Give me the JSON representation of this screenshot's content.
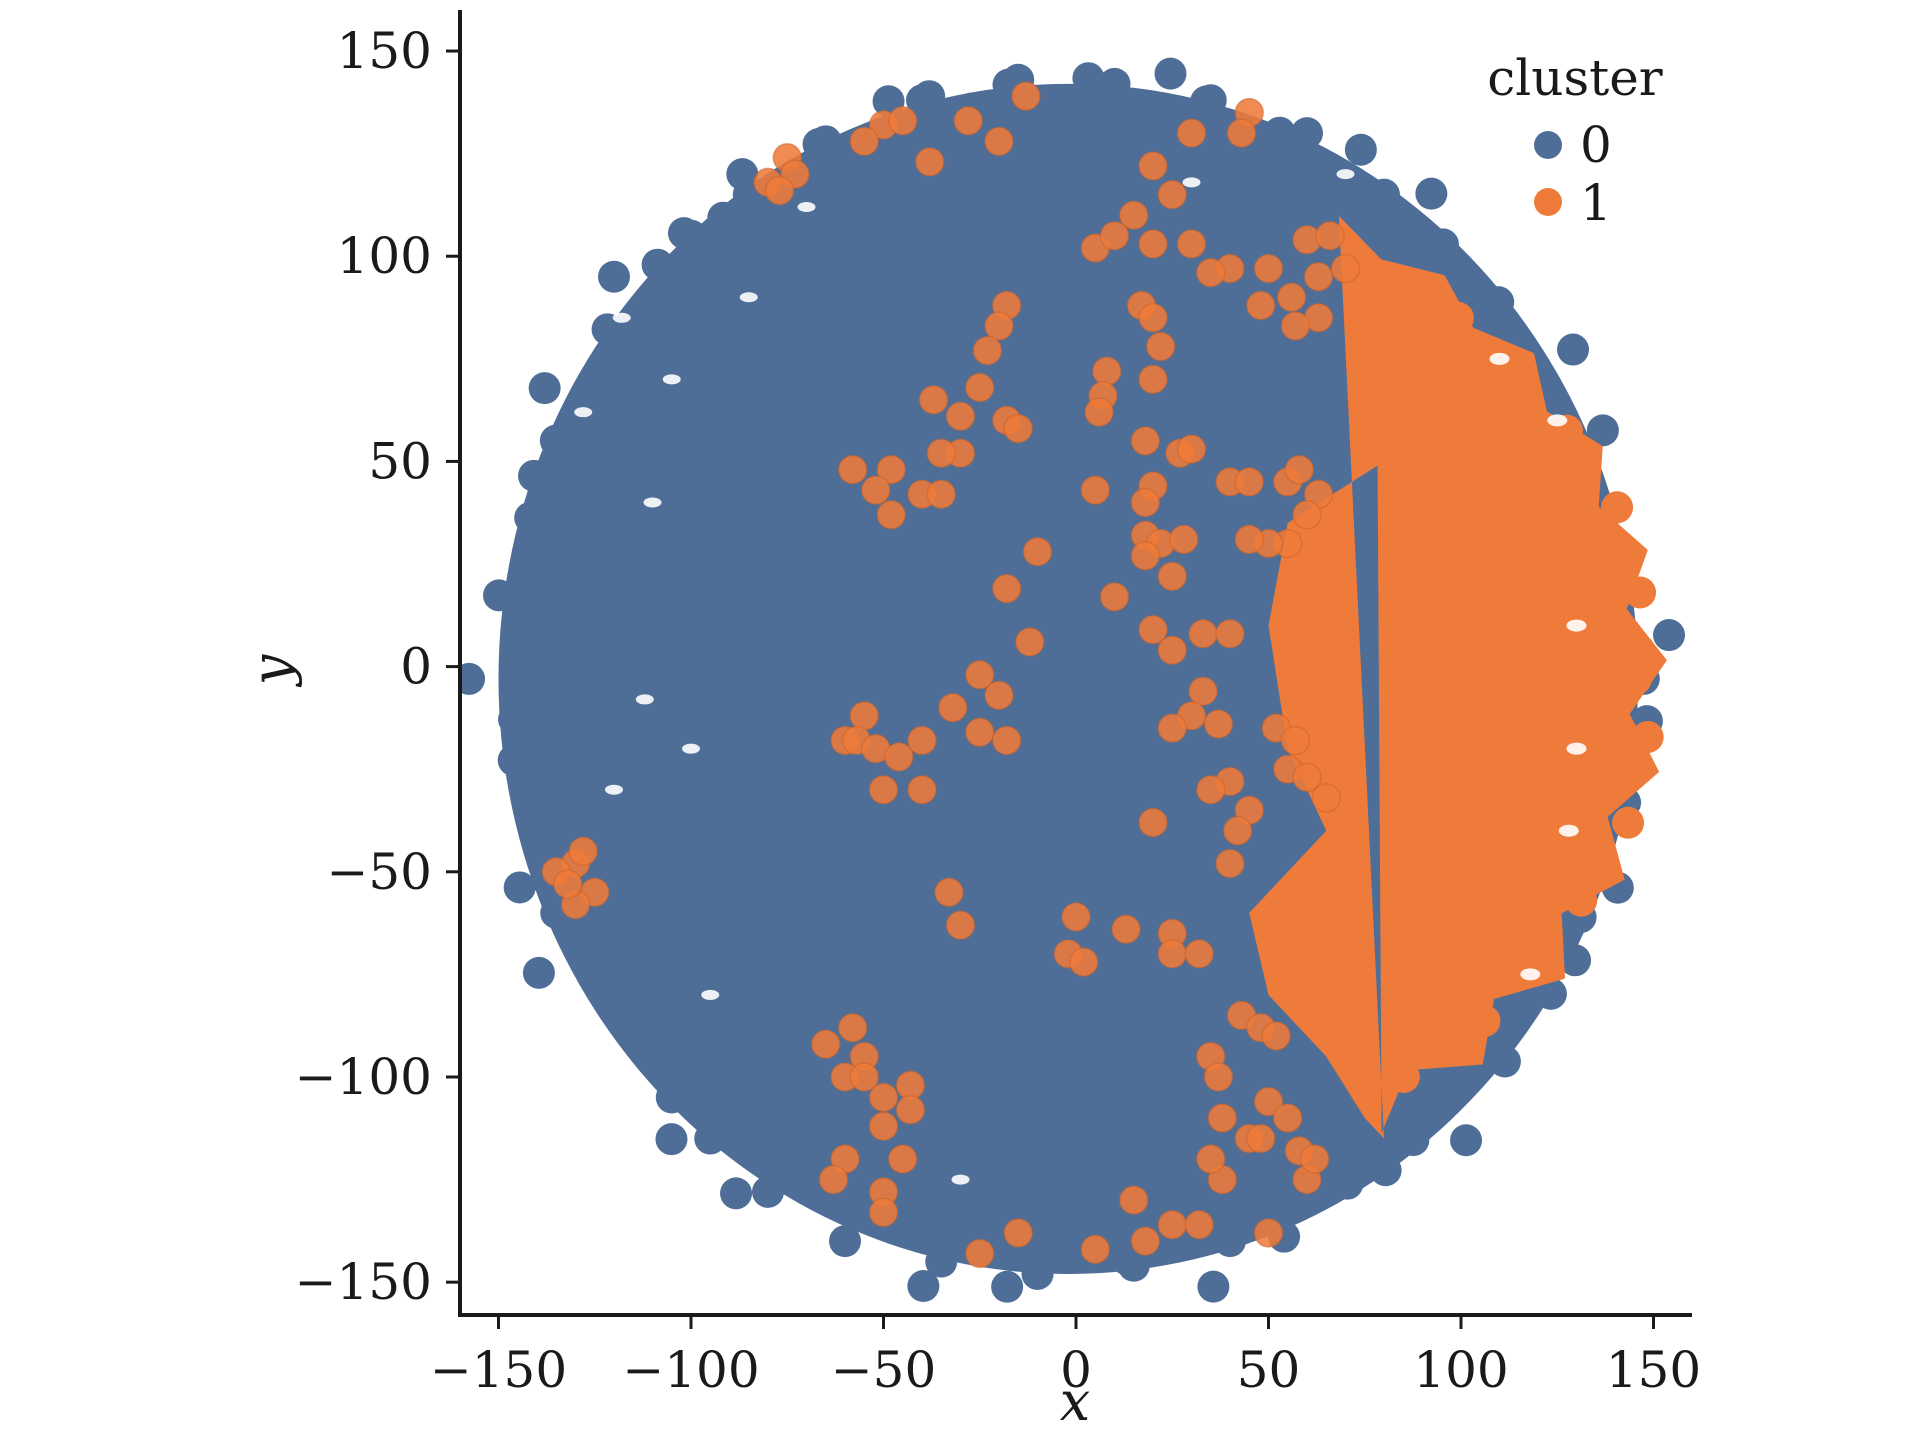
{
  "chart_data": {
    "type": "scatter",
    "title": "",
    "xlabel": "x",
    "ylabel": "y",
    "xlim": [
      -160,
      160
    ],
    "ylim": [
      -158,
      160
    ],
    "x_ticks": [
      -150,
      -100,
      -50,
      0,
      50,
      100,
      150
    ],
    "y_ticks": [
      -150,
      -100,
      -50,
      0,
      50,
      100,
      150
    ],
    "x_tick_labels": [
      "−150",
      "−100",
      "−50",
      "0",
      "50",
      "100",
      "150"
    ],
    "y_tick_labels": [
      "−150",
      "−100",
      "−50",
      "0",
      "50",
      "100",
      "150"
    ],
    "grid": false,
    "legend": {
      "title": "cluster",
      "placement": "top-right",
      "entries": [
        {
          "label": "0",
          "color": "#4e6e98"
        },
        {
          "label": "1",
          "color": "#ee7b3a"
        }
      ]
    },
    "series": [
      {
        "name": "0",
        "color": "#4e6e98",
        "cloud": {
          "center": [
            -2,
            -3
          ],
          "rx": 148,
          "ry": 145
        },
        "points": [
          [
            -120,
            95
          ],
          [
            -130,
            60
          ],
          [
            -140,
            30
          ],
          [
            -145,
            0
          ],
          [
            -140,
            -30
          ],
          [
            -135,
            -60
          ],
          [
            -120,
            -80
          ],
          [
            -105,
            -105
          ],
          [
            -95,
            -115
          ],
          [
            -80,
            -128
          ],
          [
            -60,
            -140
          ],
          [
            -35,
            -145
          ],
          [
            -10,
            -148
          ],
          [
            15,
            -146
          ],
          [
            40,
            -140
          ],
          [
            60,
            -128
          ],
          [
            80,
            115
          ],
          [
            60,
            130
          ],
          [
            35,
            138
          ],
          [
            10,
            142
          ],
          [
            -15,
            143
          ],
          [
            -40,
            138
          ],
          [
            -65,
            128
          ],
          [
            -85,
            115
          ],
          [
            -100,
            105
          ],
          [
            -110,
            80
          ]
        ]
      },
      {
        "name": "1",
        "color": "#ee7b3a",
        "region": {
          "center": [
            100,
            -5
          ],
          "rx": 55,
          "ry": 110,
          "left_boundary": [
            [
              78,
              100
            ],
            [
              85,
              70
            ],
            [
              80,
              50
            ],
            [
              55,
              35
            ],
            [
              50,
              10
            ],
            [
              55,
              -20
            ],
            [
              65,
              -40
            ],
            [
              45,
              -60
            ],
            [
              50,
              -80
            ],
            [
              65,
              -95
            ],
            [
              75,
              -110
            ],
            [
              80,
              -115
            ]
          ]
        },
        "points": [
          [
            -75,
            124
          ],
          [
            -73,
            120
          ],
          [
            -80,
            118
          ],
          [
            -77,
            116
          ],
          [
            -50,
            132
          ],
          [
            -55,
            128
          ],
          [
            -45,
            133
          ],
          [
            -38,
            123
          ],
          [
            -28,
            133
          ],
          [
            -13,
            139
          ],
          [
            -20,
            128
          ],
          [
            45,
            135
          ],
          [
            43,
            130
          ],
          [
            30,
            130
          ],
          [
            20,
            122
          ],
          [
            25,
            115
          ],
          [
            15,
            110
          ],
          [
            20,
            103
          ],
          [
            5,
            102
          ],
          [
            10,
            105
          ],
          [
            30,
            103
          ],
          [
            40,
            97
          ],
          [
            35,
            96
          ],
          [
            50,
            97
          ],
          [
            60,
            104
          ],
          [
            66,
            105
          ],
          [
            70,
            97
          ],
          [
            63,
            95
          ],
          [
            56,
            90
          ],
          [
            48,
            88
          ],
          [
            63,
            85
          ],
          [
            57,
            83
          ],
          [
            17,
            88
          ],
          [
            20,
            85
          ],
          [
            22,
            78
          ],
          [
            20,
            70
          ],
          [
            8,
            72
          ],
          [
            7,
            66
          ],
          [
            6,
            62
          ],
          [
            -18,
            88
          ],
          [
            -20,
            83
          ],
          [
            -23,
            77
          ],
          [
            -25,
            68
          ],
          [
            -37,
            65
          ],
          [
            -30,
            61
          ],
          [
            -18,
            60
          ],
          [
            -15,
            58
          ],
          [
            -30,
            52
          ],
          [
            -35,
            52
          ],
          [
            -40,
            42
          ],
          [
            -35,
            42
          ],
          [
            -48,
            48
          ],
          [
            -52,
            43
          ],
          [
            -58,
            48
          ],
          [
            -48,
            37
          ],
          [
            5,
            43
          ],
          [
            18,
            55
          ],
          [
            27,
            52
          ],
          [
            30,
            53
          ],
          [
            40,
            45
          ],
          [
            45,
            45
          ],
          [
            55,
            45
          ],
          [
            58,
            48
          ],
          [
            63,
            42
          ],
          [
            60,
            37
          ],
          [
            55,
            30
          ],
          [
            50,
            30
          ],
          [
            45,
            31
          ],
          [
            20,
            44
          ],
          [
            18,
            40
          ],
          [
            18,
            32
          ],
          [
            22,
            30
          ],
          [
            28,
            31
          ],
          [
            18,
            27
          ],
          [
            25,
            22
          ],
          [
            -18,
            19
          ],
          [
            10,
            17
          ],
          [
            20,
            9
          ],
          [
            25,
            4
          ],
          [
            33,
            8
          ],
          [
            40,
            8
          ],
          [
            -12,
            6
          ],
          [
            -25,
            -2
          ],
          [
            -20,
            -7
          ],
          [
            -55,
            -12
          ],
          [
            -60,
            -18
          ],
          [
            -57,
            -18
          ],
          [
            -52,
            -20
          ],
          [
            -46,
            -22
          ],
          [
            -40,
            -18
          ],
          [
            -40,
            -30
          ],
          [
            -50,
            -30
          ],
          [
            -32,
            -10
          ],
          [
            -25,
            -16
          ],
          [
            33,
            -6
          ],
          [
            30,
            -12
          ],
          [
            25,
            -15
          ],
          [
            37,
            -14
          ],
          [
            52,
            -15
          ],
          [
            57,
            -18
          ],
          [
            55,
            -25
          ],
          [
            60,
            -27
          ],
          [
            65,
            -32
          ],
          [
            40,
            -28
          ],
          [
            45,
            -35
          ],
          [
            35,
            -30
          ],
          [
            42,
            -40
          ],
          [
            20,
            -38
          ],
          [
            40,
            -48
          ],
          [
            -33,
            -55
          ],
          [
            -30,
            -63
          ],
          [
            0,
            -61
          ],
          [
            13,
            -64
          ],
          [
            25,
            -65
          ],
          [
            25,
            -70
          ],
          [
            32,
            -70
          ],
          [
            -2,
            -70
          ],
          [
            2,
            -72
          ],
          [
            -65,
            -92
          ],
          [
            -58,
            -88
          ],
          [
            -55,
            -95
          ],
          [
            -60,
            -100
          ],
          [
            -55,
            -100
          ],
          [
            -50,
            -105
          ],
          [
            -43,
            -102
          ],
          [
            -43,
            -108
          ],
          [
            -50,
            -112
          ],
          [
            -60,
            -120
          ],
          [
            -63,
            -125
          ],
          [
            -45,
            -120
          ],
          [
            -50,
            -128
          ],
          [
            -50,
            -133
          ],
          [
            -25,
            -143
          ],
          [
            -15,
            -138
          ],
          [
            5,
            -142
          ],
          [
            15,
            -130
          ],
          [
            18,
            -140
          ],
          [
            25,
            -136
          ],
          [
            32,
            -136
          ],
          [
            38,
            -125
          ],
          [
            35,
            -120
          ],
          [
            38,
            -110
          ],
          [
            45,
            -115
          ],
          [
            48,
            -115
          ],
          [
            50,
            -106
          ],
          [
            55,
            -110
          ],
          [
            58,
            -118
          ],
          [
            60,
            -125
          ],
          [
            62,
            -120
          ],
          [
            50,
            -138
          ],
          [
            43,
            -85
          ],
          [
            48,
            -88
          ],
          [
            52,
            -90
          ],
          [
            35,
            -95
          ],
          [
            37,
            -100
          ],
          [
            -130,
            -48
          ],
          [
            -128,
            -45
          ],
          [
            -125,
            -55
          ],
          [
            -130,
            -58
          ],
          [
            -135,
            -50
          ],
          [
            -132,
            -53
          ],
          [
            -18,
            -18
          ],
          [
            -10,
            28
          ]
        ]
      }
    ]
  }
}
